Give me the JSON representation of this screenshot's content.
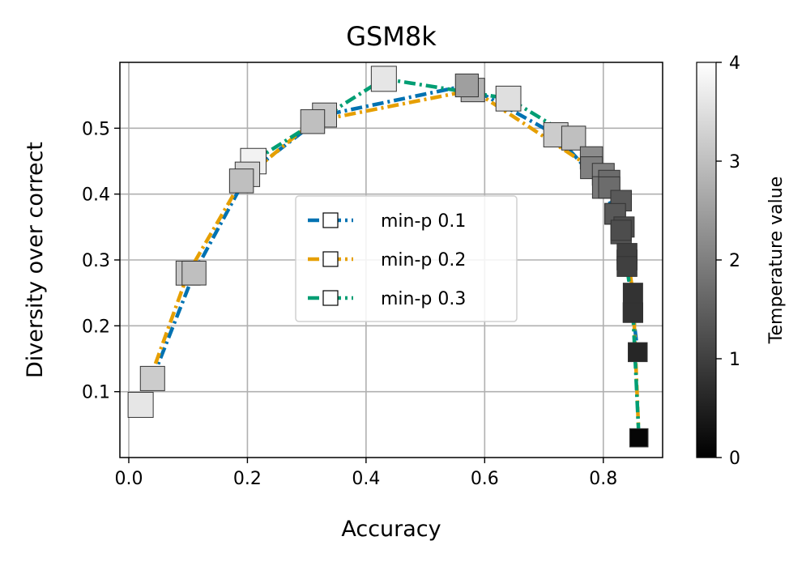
{
  "chart_data": {
    "type": "scatter",
    "title": "GSM8k",
    "xlabel": "Accuracy",
    "ylabel": "Diversity over correct",
    "xlim": [
      -0.015,
      0.9
    ],
    "ylim": [
      0.0,
      0.6
    ],
    "xticks": [
      0.0,
      0.2,
      0.4,
      0.6,
      0.8
    ],
    "xtick_labels": [
      "0.0",
      "0.2",
      "0.4",
      "0.6",
      "0.8"
    ],
    "yticks": [
      0.1,
      0.2,
      0.3,
      0.4,
      0.5
    ],
    "ytick_labels": [
      "0.1",
      "0.2",
      "0.3",
      "0.4",
      "0.5"
    ],
    "grid": true,
    "legend_position": "center-right",
    "colorbar": {
      "label": "Temperature value",
      "range": [
        0,
        4
      ],
      "ticks": [
        0,
        1,
        2,
        3,
        4
      ],
      "tick_labels": [
        "0",
        "1",
        "2",
        "3",
        "4"
      ],
      "colormap": "gray"
    },
    "series": [
      {
        "name": "min-p 0.1",
        "color": "#0072b2",
        "x": [
          0.04,
          0.11,
          0.2,
          0.33,
          0.57,
          0.72,
          0.8,
          0.82,
          0.83,
          0.84,
          0.85,
          0.858
        ],
        "y": [
          0.12,
          0.28,
          0.43,
          0.52,
          0.565,
          0.49,
          0.41,
          0.37,
          0.34,
          0.3,
          0.22,
          0.16
        ],
        "temperature": [
          3.2,
          3.0,
          3.3,
          3.1,
          2.5,
          3.2,
          1.9,
          1.5,
          1.3,
          1.1,
          0.9,
          0.6
        ]
      },
      {
        "name": "min-p 0.2",
        "color": "#e69f00",
        "x": [
          0.02,
          0.1,
          0.19,
          0.31,
          0.58,
          0.78,
          0.81,
          0.83,
          0.835,
          0.84,
          0.85,
          0.86
        ],
        "y": [
          0.08,
          0.28,
          0.42,
          0.51,
          0.558,
          0.44,
          0.42,
          0.39,
          0.35,
          0.31,
          0.25,
          0.03
        ],
        "temperature": [
          3.6,
          3.1,
          3.0,
          3.0,
          2.8,
          2.0,
          1.7,
          1.4,
          1.2,
          1.0,
          0.8,
          0.2
        ]
      },
      {
        "name": "min-p 0.3",
        "color": "#009e73",
        "x": [
          0.21,
          0.43,
          0.64,
          0.75,
          0.78,
          0.8,
          0.81,
          0.82,
          0.83,
          0.84,
          0.85,
          0.86
        ],
        "y": [
          0.45,
          0.575,
          0.545,
          0.485,
          0.455,
          0.43,
          0.41,
          0.37,
          0.345,
          0.29,
          0.22,
          0.03
        ],
        "temperature": [
          3.8,
          3.6,
          3.5,
          3.0,
          2.2,
          2.0,
          1.7,
          1.4,
          1.2,
          1.0,
          0.8,
          0.1
        ]
      }
    ]
  }
}
